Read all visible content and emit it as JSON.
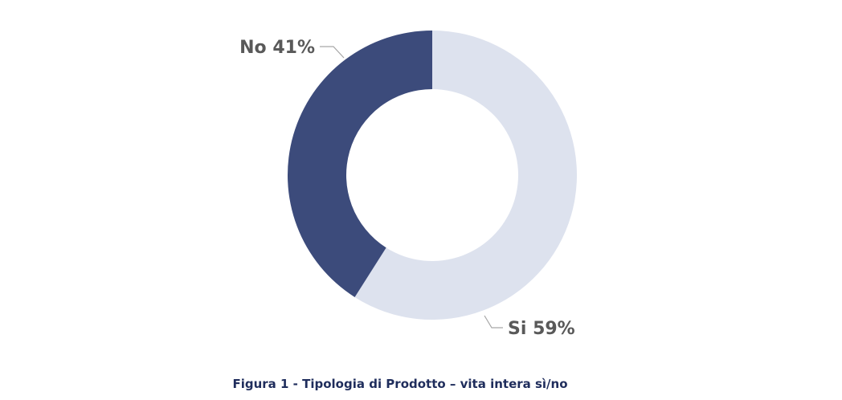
{
  "chart_data": {
    "type": "donut",
    "title": "Figura 1 - Tipologia di Prodotto – vita intera sì/no",
    "categories": [
      "Si",
      "No"
    ],
    "values": [
      59,
      41
    ],
    "value_labels": [
      "59%",
      "41%"
    ],
    "colors": [
      "#dde2ee",
      "#3c4b7b"
    ]
  }
}
